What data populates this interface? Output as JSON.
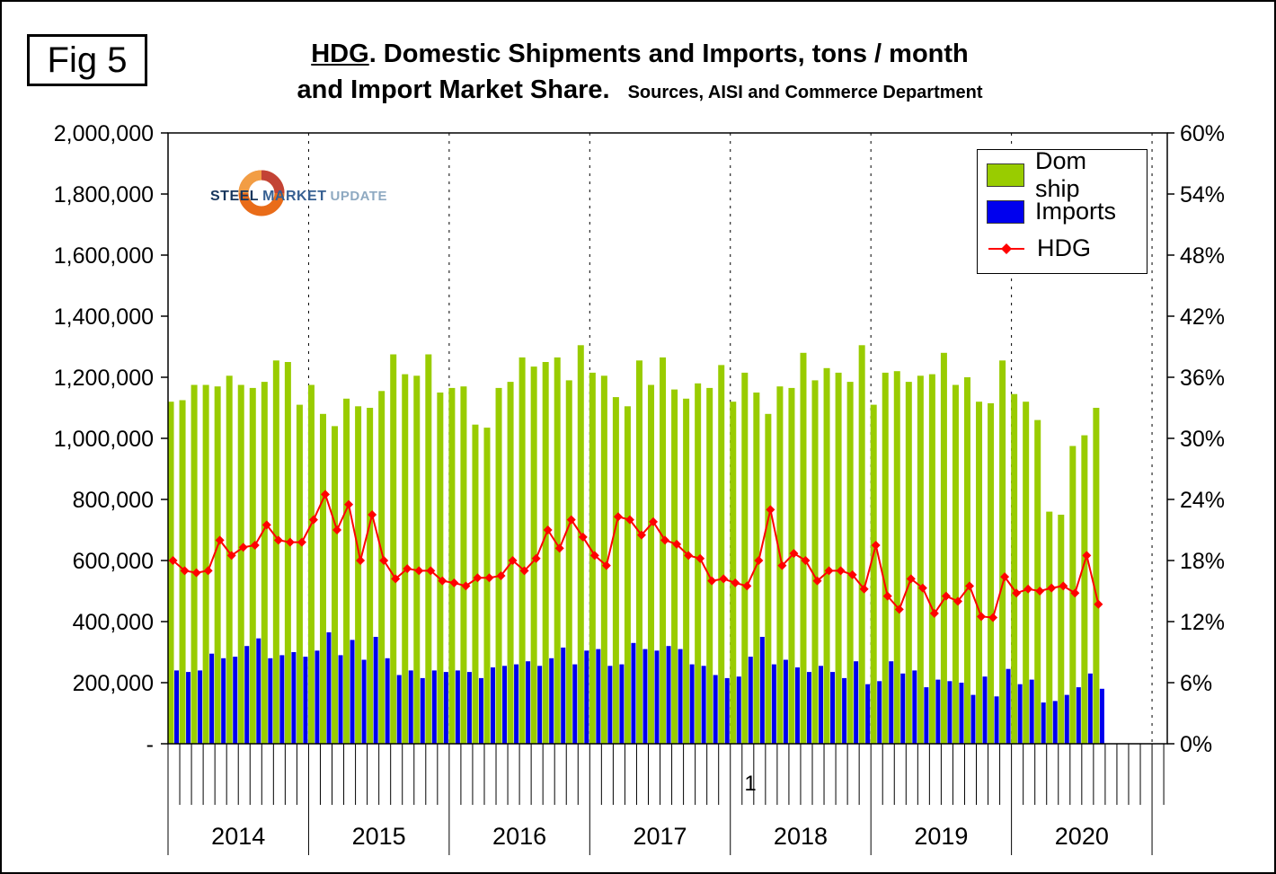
{
  "header": {
    "fig_label": "Fig 5"
  },
  "logo": {
    "steel": "STEEL",
    "market": "MARKET",
    "update": "UPDATE"
  },
  "chart_data": {
    "type": "bar",
    "title": {
      "keyword": "HDG",
      "rest": ". Domestic Shipments and Imports, tons / month",
      "line2": "and Import Market Share.",
      "source": "Sources, AISI and Commerce Department"
    },
    "legend": [
      {
        "label": "Dom ship",
        "color": "#99CC00",
        "type": "bar"
      },
      {
        "label": "Imports",
        "color": "#0000EE",
        "type": "bar"
      },
      {
        "label": "HDG",
        "color": "#FF0000",
        "type": "line"
      }
    ],
    "colors": {
      "dom_ship": "#99CC00",
      "imports": "#0000EE",
      "hdg": "#FF0000"
    },
    "left_axis": {
      "max": 2000000,
      "ticks": [
        "2,000,000",
        "1,800,000",
        "1,600,000",
        "1,400,000",
        "1,200,000",
        "1,000,000",
        "800,000",
        "600,000",
        "400,000",
        "200,000",
        "-"
      ]
    },
    "right_axis": {
      "max": 60,
      "ticks": [
        "60%",
        "54%",
        "48%",
        "42%",
        "36%",
        "30%",
        "24%",
        "18%",
        "12%",
        "6%",
        "0%"
      ]
    },
    "years": [
      {
        "label": "2014",
        "months": 12
      },
      {
        "label": "2015",
        "months": 12
      },
      {
        "label": "2016",
        "months": 12
      },
      {
        "label": "2017",
        "months": 12
      },
      {
        "label": "2018",
        "months": 12
      },
      {
        "label": "2019",
        "months": 12
      },
      {
        "label": "2020",
        "months": 12
      }
    ],
    "data_months": 80,
    "stray_label": "1",
    "grid": "vertical-dashed-year-separators",
    "legend_position": "top-right-inside",
    "series": [
      {
        "name": "Dom ship",
        "axis": "left",
        "type": "bar",
        "values": [
          1120000,
          1125000,
          1175000,
          1175000,
          1170000,
          1205000,
          1175000,
          1165000,
          1185000,
          1255000,
          1250000,
          1110000,
          1175000,
          1080000,
          1040000,
          1130000,
          1105000,
          1100000,
          1155000,
          1275000,
          1210000,
          1205000,
          1275000,
          1150000,
          1165000,
          1170000,
          1045000,
          1035000,
          1165000,
          1185000,
          1265000,
          1235000,
          1250000,
          1265000,
          1190000,
          1305000,
          1215000,
          1205000,
          1135000,
          1105000,
          1255000,
          1175000,
          1265000,
          1160000,
          1130000,
          1180000,
          1165000,
          1240000,
          1120000,
          1215000,
          1150000,
          1080000,
          1170000,
          1165000,
          1280000,
          1190000,
          1230000,
          1215000,
          1185000,
          1305000,
          1110000,
          1215000,
          1220000,
          1185000,
          1205000,
          1210000,
          1280000,
          1175000,
          1200000,
          1120000,
          1115000,
          1255000,
          1145000,
          1120000,
          1060000,
          760000,
          750000,
          975000,
          1010000,
          1100000
        ]
      },
      {
        "name": "Imports",
        "axis": "left",
        "type": "bar",
        "values": [
          240000,
          235000,
          240000,
          295000,
          280000,
          285000,
          320000,
          345000,
          280000,
          290000,
          300000,
          285000,
          305000,
          365000,
          290000,
          340000,
          275000,
          350000,
          280000,
          225000,
          240000,
          215000,
          240000,
          235000,
          240000,
          235000,
          215000,
          250000,
          255000,
          260000,
          270000,
          255000,
          280000,
          315000,
          260000,
          305000,
          310000,
          255000,
          260000,
          330000,
          310000,
          305000,
          320000,
          310000,
          260000,
          255000,
          225000,
          215000,
          220000,
          285000,
          350000,
          260000,
          275000,
          250000,
          235000,
          255000,
          235000,
          215000,
          270000,
          195000,
          205000,
          270000,
          230000,
          240000,
          185000,
          210000,
          205000,
          200000,
          160000,
          220000,
          155000,
          245000,
          195000,
          210000,
          135000,
          140000,
          160000,
          185000,
          230000,
          180000
        ]
      },
      {
        "name": "HDG",
        "axis": "right",
        "type": "line",
        "unit": "%",
        "values": [
          18.0,
          17.0,
          16.8,
          17.0,
          20.0,
          18.5,
          19.3,
          19.5,
          21.5,
          20.0,
          19.8,
          19.8,
          22.0,
          24.5,
          21.0,
          23.5,
          18.0,
          22.5,
          18.0,
          16.2,
          17.2,
          17.0,
          17.0,
          16.0,
          15.8,
          15.5,
          16.3,
          16.3,
          16.5,
          18.0,
          17.0,
          18.2,
          21.0,
          19.2,
          22.0,
          20.3,
          18.5,
          17.5,
          22.3,
          22.0,
          20.5,
          21.8,
          20.0,
          19.6,
          18.5,
          18.2,
          16.0,
          16.2,
          15.8,
          15.5,
          18.0,
          23.0,
          17.5,
          18.7,
          18.0,
          16.0,
          17.0,
          17.0,
          16.6,
          15.2,
          19.5,
          14.5,
          13.2,
          16.2,
          15.3,
          12.8,
          14.5,
          14.0,
          15.5,
          12.5,
          12.4,
          16.4,
          14.8,
          15.2,
          15.0,
          15.3,
          15.5,
          14.8,
          18.5,
          13.7
        ]
      }
    ]
  }
}
